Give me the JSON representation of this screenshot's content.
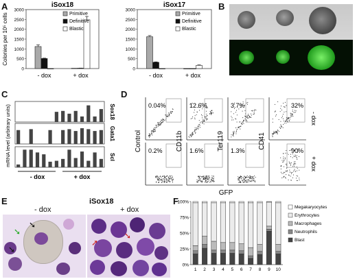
{
  "panels": {
    "A": "A",
    "B": "B",
    "C": "C",
    "D": "D",
    "E": "E",
    "F": "F"
  },
  "panelA": {
    "ylabel": "Colonies per 10⁵ cells",
    "chart_data": [
      {
        "type": "bar",
        "title": "iSox18",
        "categories": [
          "- dox",
          "+ dox"
        ],
        "series": [
          {
            "name": "Primitive",
            "values": [
              1120,
              15
            ]
          },
          {
            "name": "Definitive",
            "values": [
              510,
              20
            ]
          },
          {
            "name": "Blastic",
            "values": [
              0,
              2480
            ]
          }
        ],
        "errors": [
          [
            90,
            0
          ],
          [
            20,
            5
          ],
          [
            0,
            170
          ]
        ],
        "ylim": [
          0,
          3000
        ],
        "yticks": [
          "0",
          "500",
          "1000",
          "1500",
          "2000",
          "2500",
          "3000"
        ]
      },
      {
        "type": "bar",
        "title": "iSox17",
        "categories": [
          "- dox",
          "+ dox"
        ],
        "series": [
          {
            "name": "Primitive",
            "values": [
              1620,
              0
            ]
          },
          {
            "name": "Definitive",
            "values": [
              320,
              0
            ]
          },
          {
            "name": "Blastic",
            "values": [
              0,
              160
            ]
          }
        ],
        "errors": [
          [
            60,
            0
          ],
          [
            20,
            0
          ],
          [
            0,
            25
          ]
        ],
        "ylim": [
          0,
          3000
        ],
        "yticks": [
          "0",
          "500",
          "1000",
          "1500",
          "2000",
          "2500",
          "3000"
        ]
      }
    ]
  },
  "panelC": {
    "ylabel": "mRNA level (arbitrary units)",
    "groups": [
      "- dox",
      "+ dox"
    ],
    "chart_data": [
      {
        "type": "bar",
        "title": "Sox18",
        "values": [
          0,
          0,
          0,
          0,
          0,
          0,
          0.55,
          0.6,
          0.45,
          0.6,
          0.3,
          0.9,
          0.3,
          0.7
        ]
      },
      {
        "type": "bar",
        "title": "Gata1",
        "values": [
          0.75,
          0,
          0.8,
          0,
          0,
          0.75,
          0,
          0.75,
          0.8,
          0.7,
          0.85,
          0.8,
          0.7,
          0.75
        ]
      },
      {
        "type": "bar",
        "title": "Scl",
        "values": [
          0.15,
          0.95,
          0.95,
          0.8,
          0.7,
          0.3,
          0.35,
          0.45,
          0.95,
          0.5,
          0.85,
          0.35,
          0.8,
          0.45
        ]
      }
    ]
  },
  "panelD": {
    "cols": [
      "Control",
      "CD11b",
      "Ter119",
      "CD41"
    ],
    "rows": [
      "- dox",
      "+ dox"
    ],
    "values": [
      [
        "0.04%",
        "12.6%",
        "3.7%",
        "32%"
      ],
      [
        "0.2%",
        "1.6%",
        "1.3%",
        "90%"
      ]
    ],
    "xlabel": "GFP"
  },
  "panelE": {
    "title": "iSox18",
    "left": "- dox",
    "right": "+ dox"
  },
  "panelF": {
    "chart_data": {
      "type": "bar",
      "categories": [
        "1",
        "2",
        "3",
        "4",
        "5",
        "6",
        "7",
        "8",
        "9",
        "10"
      ],
      "series": [
        {
          "name": "Blast",
          "values": [
            17,
            26,
            18,
            18,
            18,
            17,
            10,
            16,
            53,
            17
          ]
        },
        {
          "name": "Neutrophils",
          "values": [
            5,
            6,
            5,
            5,
            5,
            5,
            4,
            5,
            3,
            4
          ]
        },
        {
          "name": "Macrophages",
          "values": [
            8,
            13,
            14,
            12,
            12,
            11,
            13,
            11,
            5,
            11
          ]
        },
        {
          "name": "Erythrocytes",
          "values": [
            68,
            53,
            61,
            63,
            63,
            65,
            71,
            66,
            38,
            66
          ]
        },
        {
          "name": "Megakaryocytes",
          "values": [
            2,
            2,
            2,
            2,
            2,
            2,
            2,
            2,
            1,
            2
          ]
        }
      ],
      "legend_order": [
        "Megakaryocytes",
        "Erythrocytes",
        "Macrophages",
        "Neutrophils",
        "Blast"
      ],
      "colors": {
        "Blast": "#444444",
        "Neutrophils": "#888888",
        "Macrophages": "#bbbbbb",
        "Erythrocytes": "#ececec",
        "Megakaryocytes": "#ffffff"
      },
      "ylim": [
        0,
        100
      ],
      "yticks": [
        "0%",
        "25%",
        "50%",
        "75%",
        "100%"
      ]
    }
  }
}
